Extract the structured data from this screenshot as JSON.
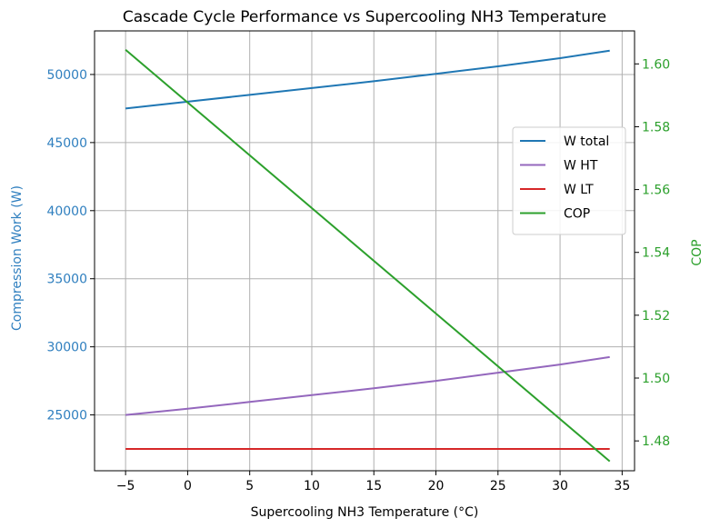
{
  "chart_data": {
    "type": "line",
    "title": "Cascade Cycle Performance vs Supercooling NH3 Temperature",
    "xlabel": "Supercooling NH3 Temperature (°C)",
    "ylabel_left": "Compression Work (W)",
    "ylabel_right": "COP",
    "xlim": [
      -7.5,
      36.0
    ],
    "ylim_left": [
      20900,
      53200
    ],
    "ylim_right": [
      1.4705,
      1.6105
    ],
    "x_ticks": [
      -5,
      0,
      5,
      10,
      15,
      20,
      25,
      30,
      35
    ],
    "x_tick_labels": [
      "−5",
      "0",
      "5",
      "10",
      "15",
      "20",
      "25",
      "30",
      "35"
    ],
    "y_left_ticks": [
      25000,
      30000,
      35000,
      40000,
      45000,
      50000
    ],
    "y_left_tick_labels": [
      "25000",
      "30000",
      "35000",
      "40000",
      "45000",
      "50000"
    ],
    "y_right_ticks": [
      1.48,
      1.5,
      1.52,
      1.54,
      1.56,
      1.58,
      1.6
    ],
    "y_right_tick_labels": [
      "1.48",
      "1.50",
      "1.52",
      "1.54",
      "1.56",
      "1.58",
      "1.60"
    ],
    "grid": true,
    "legend_position": "center-right",
    "left_axis_color": "#2f7fbf",
    "right_axis_color": "#2ca02c",
    "x": [
      -5,
      34
    ],
    "series": [
      {
        "name": "W total",
        "axis": "left",
        "color": "#1f77b4",
        "x": [
          -5,
          0,
          5,
          10,
          15,
          20,
          25,
          30,
          34
        ],
        "values": [
          47500,
          48000,
          48500,
          49000,
          49500,
          50050,
          50600,
          51200,
          51750
        ]
      },
      {
        "name": "W HT",
        "axis": "left",
        "color": "#9467bd",
        "x": [
          -5,
          0,
          5,
          10,
          15,
          20,
          25,
          30,
          34
        ],
        "values": [
          25000,
          25450,
          25950,
          26450,
          26950,
          27500,
          28100,
          28700,
          29250
        ]
      },
      {
        "name": "W LT",
        "axis": "left",
        "color": "#d62728",
        "x": [
          -5,
          34
        ],
        "values": [
          22500,
          22500
        ]
      },
      {
        "name": "COP",
        "axis": "right",
        "color": "#2ca02c",
        "x": [
          -5,
          34
        ],
        "values": [
          1.6045,
          1.4735
        ]
      }
    ]
  }
}
